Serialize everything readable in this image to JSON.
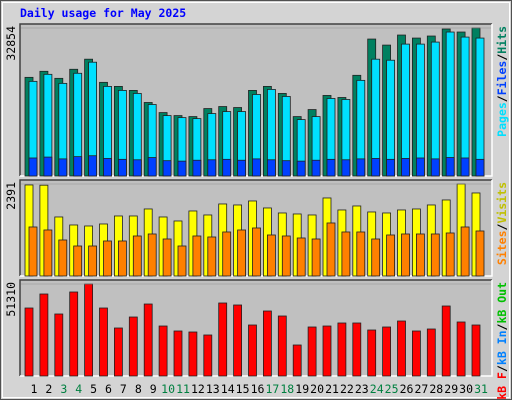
{
  "chart_data": [
    {
      "type": "bar",
      "title": "Daily usage for May 2025",
      "ylim": [
        0,
        32854
      ],
      "yticks": [
        32854
      ],
      "series": [
        {
          "name": "Hits",
          "color": "#008060",
          "values": [
            21900,
            23240,
            21680,
            23690,
            25930,
            20790,
            19890,
            19000,
            16320,
            14080,
            13410,
            13190,
            14970,
            15420,
            15200,
            19000,
            19890,
            18330,
            13190,
            14750,
            17880,
            17430,
            22350,
            30400,
            29060,
            31290,
            30620,
            31070,
            32630,
            31960,
            32854
          ]
        },
        {
          "name": "Files",
          "color": "#0040ff",
          "values": [
            4000,
            4200,
            3800,
            4300,
            4500,
            3900,
            3700,
            3600,
            4100,
            3400,
            3300,
            3500,
            3600,
            3700,
            3500,
            3800,
            3600,
            3400,
            3300,
            3500,
            3700,
            3600,
            3800,
            3900,
            3700,
            3900,
            4000,
            3800,
            4100,
            4000,
            3700
          ]
        },
        {
          "name": "Pages",
          "color": "#00e0ff",
          "values": [
            21010,
            22570,
            20560,
            22800,
            25260,
            19890,
            19000,
            18330,
            15870,
            13410,
            12960,
            12740,
            13860,
            14300,
            14300,
            18100,
            19220,
            17660,
            12520,
            13190,
            17210,
            16990,
            21230,
            25930,
            25700,
            29280,
            29280,
            29730,
            31960,
            30840,
            30620
          ]
        }
      ],
      "legend_separator": "/"
    },
    {
      "type": "bar",
      "ylim": [
        0,
        2391
      ],
      "yticks": [
        2391
      ],
      "series": [
        {
          "name": "Visits",
          "color": "#ffff00",
          "text_color": "#c0c000",
          "values": [
            2366,
            2360,
            1534,
            1326,
            1300,
            1352,
            1560,
            1560,
            1742,
            1534,
            1430,
            1690,
            1586,
            1872,
            1846,
            1950,
            1768,
            1638,
            1612,
            1586,
            2028,
            1716,
            1820,
            1664,
            1638,
            1716,
            1742,
            1846,
            1976,
            2391,
            2158
          ]
        },
        {
          "name": "Sites",
          "color": "#ff8000",
          "values": [
            1274,
            1196,
            936,
            780,
            780,
            910,
            910,
            1040,
            1092,
            962,
            780,
            1040,
            1014,
            1144,
            1196,
            1248,
            1066,
            1040,
            988,
            962,
            1378,
            1144,
            1144,
            962,
            1066,
            1092,
            1092,
            1092,
            1118,
            1274,
            1170
          ]
        }
      ],
      "legend_separator": "/"
    },
    {
      "type": "bar",
      "ylim": [
        0,
        51310
      ],
      "yticks": [
        51310
      ],
      "series": [
        {
          "name": "kB F",
          "color": "#ff0000",
          "values": [
            37920,
            45730,
            34580,
            46850,
            51310,
            37920,
            26770,
            32900,
            40150,
            27880,
            25100,
            24540,
            22870,
            40710,
            39600,
            28440,
            36250,
            33460,
            17290,
            27330,
            27880,
            29560,
            29560,
            25650,
            27330,
            30670,
            25100,
            26210,
            39040,
            30120,
            28440
          ]
        }
      ],
      "legend_extra": [
        {
          "name": "kB In",
          "color": "#0080ff"
        },
        {
          "name": "kB Out",
          "color": "#00c000"
        }
      ],
      "legend_separator": "/",
      "categories": [
        1,
        2,
        3,
        4,
        5,
        6,
        7,
        8,
        9,
        10,
        11,
        12,
        13,
        14,
        15,
        16,
        17,
        18,
        19,
        20,
        21,
        22,
        23,
        24,
        25,
        26,
        27,
        28,
        29,
        30,
        31
      ],
      "weekend": [
        3,
        4,
        10,
        11,
        17,
        18,
        24,
        25,
        31
      ],
      "weekend_color": "#008040",
      "weekday_color": "#000000"
    }
  ]
}
